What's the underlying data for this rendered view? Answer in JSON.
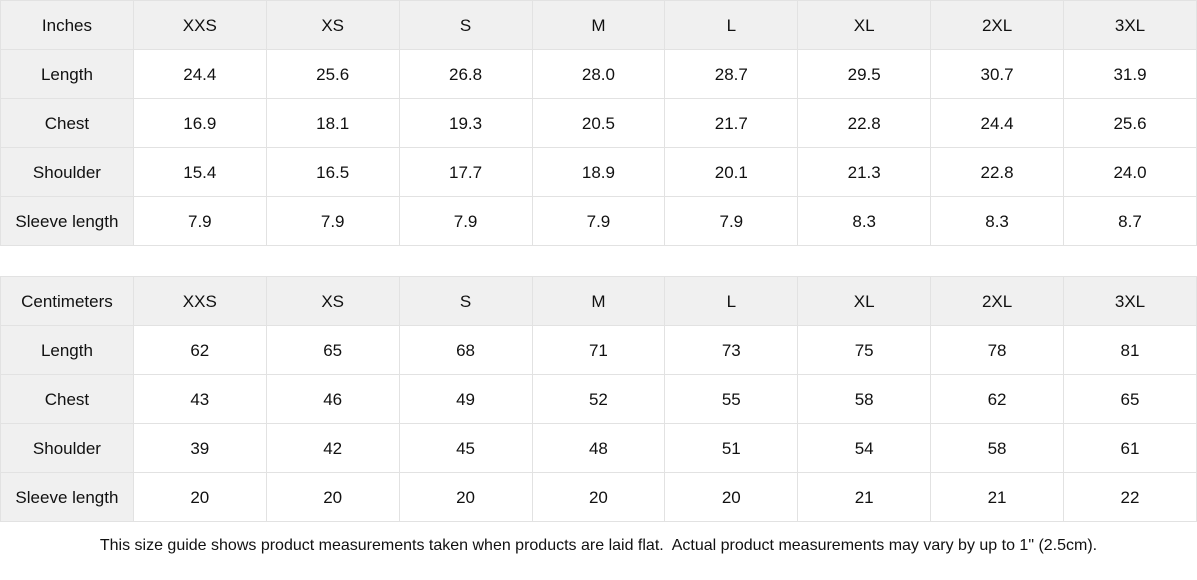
{
  "tables": [
    {
      "unit_label": "Inches",
      "columns": [
        "XXS",
        "XS",
        "S",
        "M",
        "L",
        "XL",
        "2XL",
        "3XL"
      ],
      "rows": [
        {
          "label": "Length",
          "values": [
            "24.4",
            "25.6",
            "26.8",
            "28.0",
            "28.7",
            "29.5",
            "30.7",
            "31.9"
          ]
        },
        {
          "label": "Chest",
          "values": [
            "16.9",
            "18.1",
            "19.3",
            "20.5",
            "21.7",
            "22.8",
            "24.4",
            "25.6"
          ]
        },
        {
          "label": "Shoulder",
          "values": [
            "15.4",
            "16.5",
            "17.7",
            "18.9",
            "20.1",
            "21.3",
            "22.8",
            "24.0"
          ]
        },
        {
          "label": "Sleeve length",
          "values": [
            "7.9",
            "7.9",
            "7.9",
            "7.9",
            "7.9",
            "8.3",
            "8.3",
            "8.7"
          ]
        }
      ]
    },
    {
      "unit_label": "Centimeters",
      "columns": [
        "XXS",
        "XS",
        "S",
        "M",
        "L",
        "XL",
        "2XL",
        "3XL"
      ],
      "rows": [
        {
          "label": "Length",
          "values": [
            "62",
            "65",
            "68",
            "71",
            "73",
            "75",
            "78",
            "81"
          ]
        },
        {
          "label": "Chest",
          "values": [
            "43",
            "46",
            "49",
            "52",
            "55",
            "58",
            "62",
            "65"
          ]
        },
        {
          "label": "Shoulder",
          "values": [
            "39",
            "42",
            "45",
            "48",
            "51",
            "54",
            "58",
            "61"
          ]
        },
        {
          "label": "Sleeve length",
          "values": [
            "20",
            "20",
            "20",
            "20",
            "20",
            "21",
            "21",
            "22"
          ]
        }
      ]
    }
  ],
  "footer": {
    "note": "This size guide shows product measurements taken when products are laid flat.  Actual product measurements may vary by up to 1\" (2.5cm)."
  },
  "colors": {
    "header_bg": "#f0f0f0",
    "border": "#e2e2e2",
    "text": "#111111",
    "background": "#ffffff"
  }
}
